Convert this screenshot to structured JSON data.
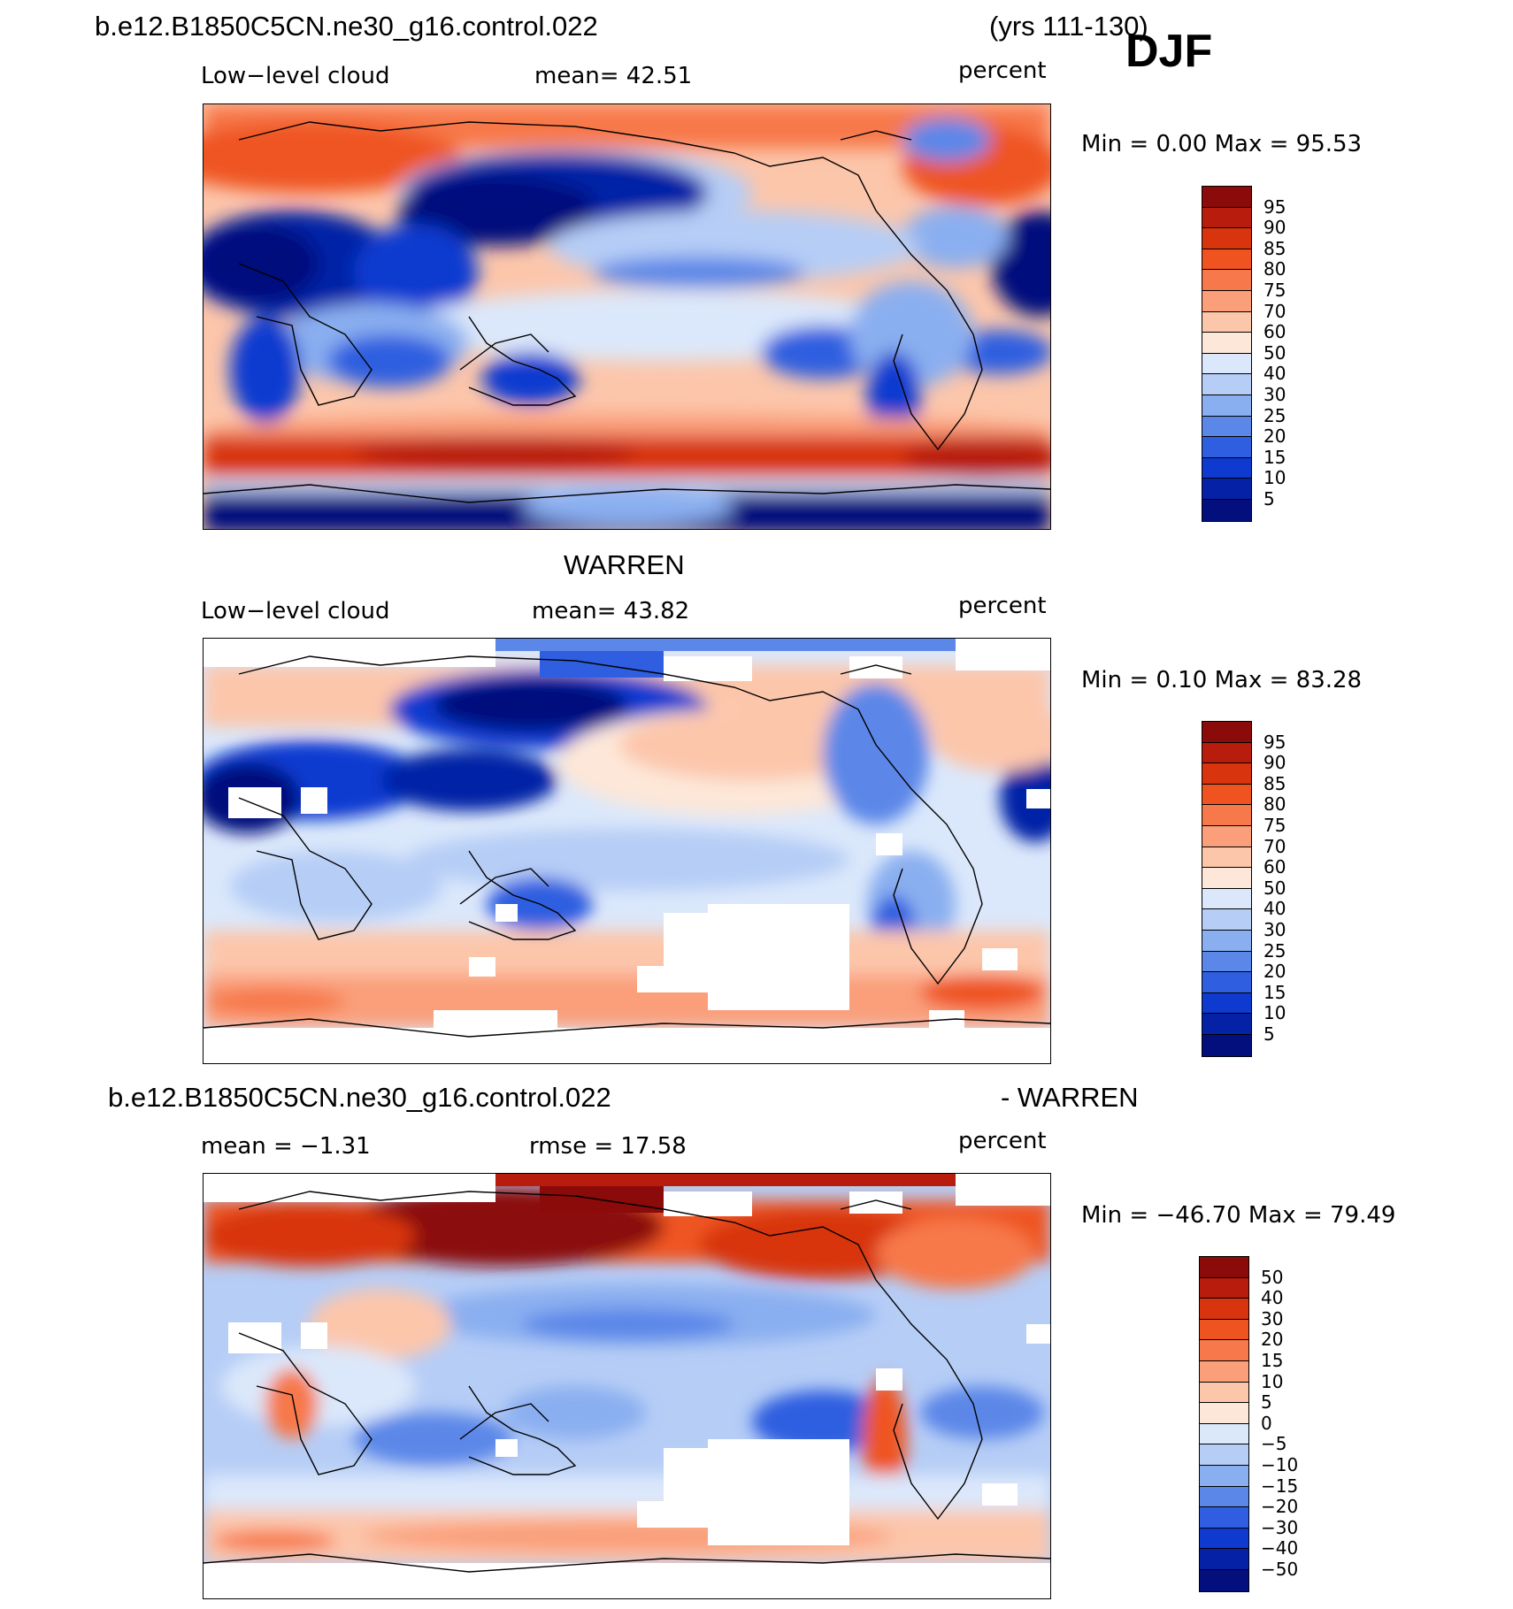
{
  "header": {
    "case_title": "b.e12.B1850C5CN.ne30_g16.control.022",
    "years": "(yrs 111-130)",
    "season": "DJF"
  },
  "panels": [
    {
      "title": "",
      "variable": "Low−level cloud",
      "stat": "mean=   42.51",
      "units": "percent",
      "minmax": "Min  =      0.00  Max  =     95.53"
    },
    {
      "title": "WARREN",
      "variable": "Low−level cloud",
      "stat": "mean=   43.82",
      "units": "percent",
      "minmax": "Min  =      0.10  Max  =     83.28"
    },
    {
      "title_left": "b.e12.B1850C5CN.ne30_g16.control.022",
      "title_right": "- WARREN",
      "variable": "mean  =    −1.31",
      "stat": "rmse  =    17.58",
      "units": "percent",
      "minmax": "Min  =  −46.70  Max  =    79.49"
    }
  ],
  "colorbars": {
    "abs_labels": [
      "95",
      "90",
      "85",
      "80",
      "75",
      "70",
      "60",
      "50",
      "40",
      "30",
      "25",
      "20",
      "15",
      "10",
      "5"
    ],
    "abs_colors": [
      "#8b0a0a",
      "#b81c0c",
      "#d8340d",
      "#ef5420",
      "#f7784a",
      "#fa9f7a",
      "#fcc6ab",
      "#fde7d8",
      "#dbe8fb",
      "#b6cdf6",
      "#8aaff0",
      "#5b87e8",
      "#2f5fe0",
      "#0f3ad0",
      "#0521a6",
      "#030f7d"
    ],
    "diff_labels": [
      "50",
      "40",
      "30",
      "20",
      "15",
      "10",
      "5",
      "0",
      "−5",
      "−10",
      "−15",
      "−20",
      "−30",
      "−40",
      "−50"
    ],
    "diff_colors": [
      "#8b0a0a",
      "#b81c0c",
      "#d8340d",
      "#ef5420",
      "#f7784a",
      "#fa9f7a",
      "#fcc6ab",
      "#fde7d8",
      "#dbe8fb",
      "#b6cdf6",
      "#8aaff0",
      "#5b87e8",
      "#2f5fe0",
      "#0f3ad0",
      "#0521a6",
      "#030f7d"
    ]
  }
}
